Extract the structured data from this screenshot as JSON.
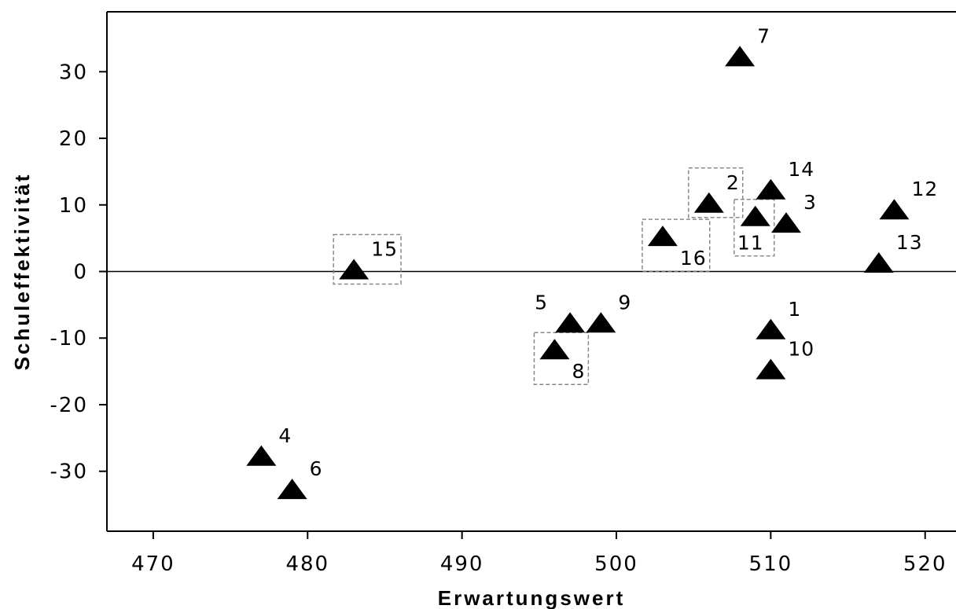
{
  "chart_data": {
    "type": "scatter",
    "xlabel": "Erwartungswert",
    "ylabel": "Schuleffektivität",
    "xlim": [
      467,
      522
    ],
    "ylim": [
      -39,
      39
    ],
    "xticks": [
      470,
      480,
      490,
      500,
      510,
      520
    ],
    "yticks": [
      -30,
      -20,
      -10,
      0,
      10,
      20,
      30
    ],
    "reference_line_y": 0,
    "marker": "filled-triangle",
    "points": [
      {
        "label": "1",
        "x": 510,
        "y": -9,
        "label_pos": "upper-right",
        "highlighted": false
      },
      {
        "label": "2",
        "x": 506,
        "y": 10,
        "label_pos": "upper-right",
        "highlighted": true
      },
      {
        "label": "3",
        "x": 511,
        "y": 7,
        "label_pos": "upper-right",
        "highlighted": false
      },
      {
        "label": "4",
        "x": 477,
        "y": -28,
        "label_pos": "upper-right",
        "highlighted": false
      },
      {
        "label": "5",
        "x": 497,
        "y": -8,
        "label_pos": "upper-left",
        "highlighted": false
      },
      {
        "label": "6",
        "x": 479,
        "y": -33,
        "label_pos": "upper-right",
        "highlighted": false
      },
      {
        "label": "7",
        "x": 508,
        "y": 32,
        "label_pos": "upper-right",
        "highlighted": false
      },
      {
        "label": "8",
        "x": 496,
        "y": -12,
        "label_pos": "lower-right",
        "highlighted": true
      },
      {
        "label": "9",
        "x": 499,
        "y": -8,
        "label_pos": "upper-right",
        "highlighted": false
      },
      {
        "label": "10",
        "x": 510,
        "y": -15,
        "label_pos": "upper-right",
        "highlighted": false
      },
      {
        "label": "11",
        "x": 509,
        "y": 8,
        "label_pos": "below",
        "highlighted": true
      },
      {
        "label": "12",
        "x": 518,
        "y": 9,
        "label_pos": "upper-right",
        "highlighted": false
      },
      {
        "label": "13",
        "x": 517,
        "y": 1,
        "label_pos": "upper-right",
        "highlighted": false
      },
      {
        "label": "14",
        "x": 510,
        "y": 12,
        "label_pos": "upper-right",
        "highlighted": false
      },
      {
        "label": "15",
        "x": 483,
        "y": 0,
        "label_pos": "upper-right",
        "highlighted": true
      },
      {
        "label": "16",
        "x": 503,
        "y": 5,
        "label_pos": "lower-right",
        "highlighted": true
      }
    ]
  }
}
